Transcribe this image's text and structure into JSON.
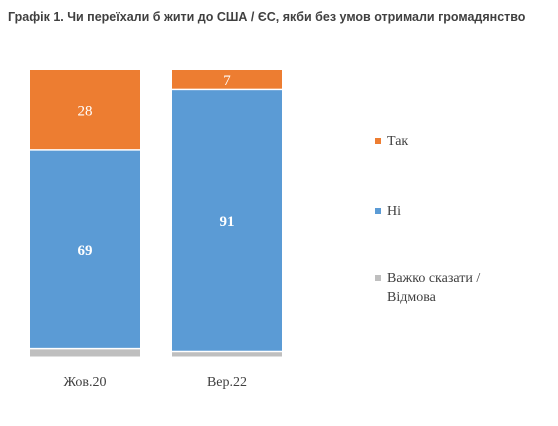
{
  "title": "Графік 1. Чи переїхали б жити до США / ЄС, якби без умов отримали громадянство",
  "colors": {
    "yes": "#ED7D31",
    "no": "#5B9BD5",
    "unsure": "#BFBFBF"
  },
  "chart_data": {
    "type": "bar",
    "stacked": true,
    "categories": [
      "Жов.20",
      "Вер.22"
    ],
    "series": [
      {
        "name": "Так",
        "values": [
          28,
          7
        ],
        "color": "#ED7D31",
        "labels": [
          "28",
          "7"
        ],
        "label_color": "#ffffff"
      },
      {
        "name": "Ні",
        "values": [
          69,
          91
        ],
        "color": "#5B9BD5",
        "labels": [
          "69",
          "91"
        ],
        "label_color": "#ffffff",
        "label_bold": true
      },
      {
        "name": "Важко сказати / Відмова",
        "values": [
          3,
          2
        ],
        "color": "#BFBFBF",
        "labels": [
          "",
          ""
        ]
      }
    ],
    "ylim": [
      0,
      100
    ],
    "legend_position": "right"
  },
  "legend": [
    {
      "label": "Так",
      "color": "#ED7D31"
    },
    {
      "label": "Ні",
      "color": "#5B9BD5"
    },
    {
      "label": "Важко сказати / Відмова",
      "color": "#BFBFBF"
    }
  ]
}
